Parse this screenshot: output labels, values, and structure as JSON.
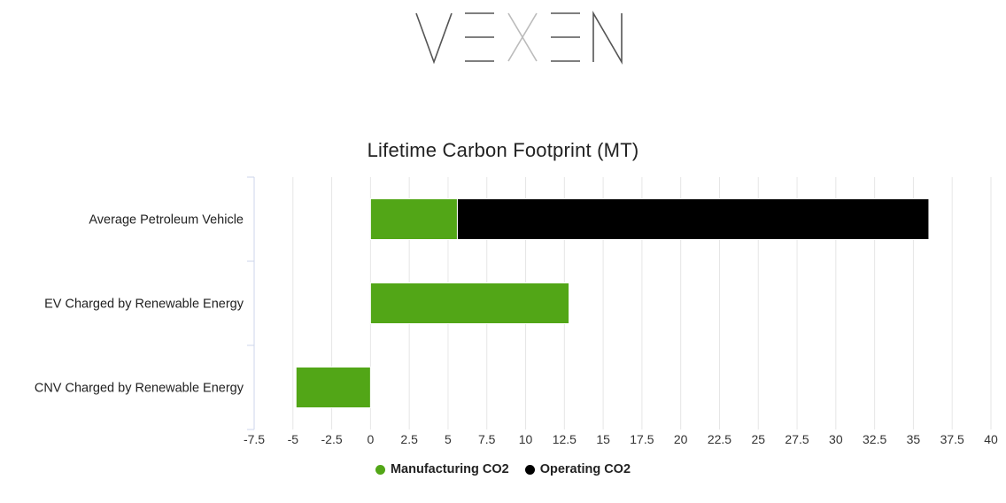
{
  "logo": {
    "text": "VEXEN",
    "color": "#555555"
  },
  "chart_data": {
    "type": "bar",
    "orientation": "horizontal",
    "stacked": true,
    "title": "Lifetime Carbon Footprint (MT)",
    "categories": [
      "Average Petroleum Vehicle",
      "EV Charged by Renewable Energy",
      "CNV Charged by Renewable Energy"
    ],
    "series": [
      {
        "name": "Manufacturing CO2",
        "color": "#52a617",
        "values": [
          5.6,
          12.8,
          -4.8
        ]
      },
      {
        "name": "Operating CO2",
        "color": "#000000",
        "values": [
          30.4,
          0,
          0
        ]
      }
    ],
    "xlim": [
      -7.5,
      40
    ],
    "xticks": [
      "-7.5",
      "-5",
      "-2.5",
      "0",
      "2.5",
      "5",
      "7.5",
      "10",
      "12.5",
      "15",
      "17.5",
      "20",
      "22.5",
      "25",
      "27.5",
      "30",
      "32.5",
      "35",
      "37.5",
      "40"
    ],
    "grid": true,
    "legend_position": "bottom"
  }
}
